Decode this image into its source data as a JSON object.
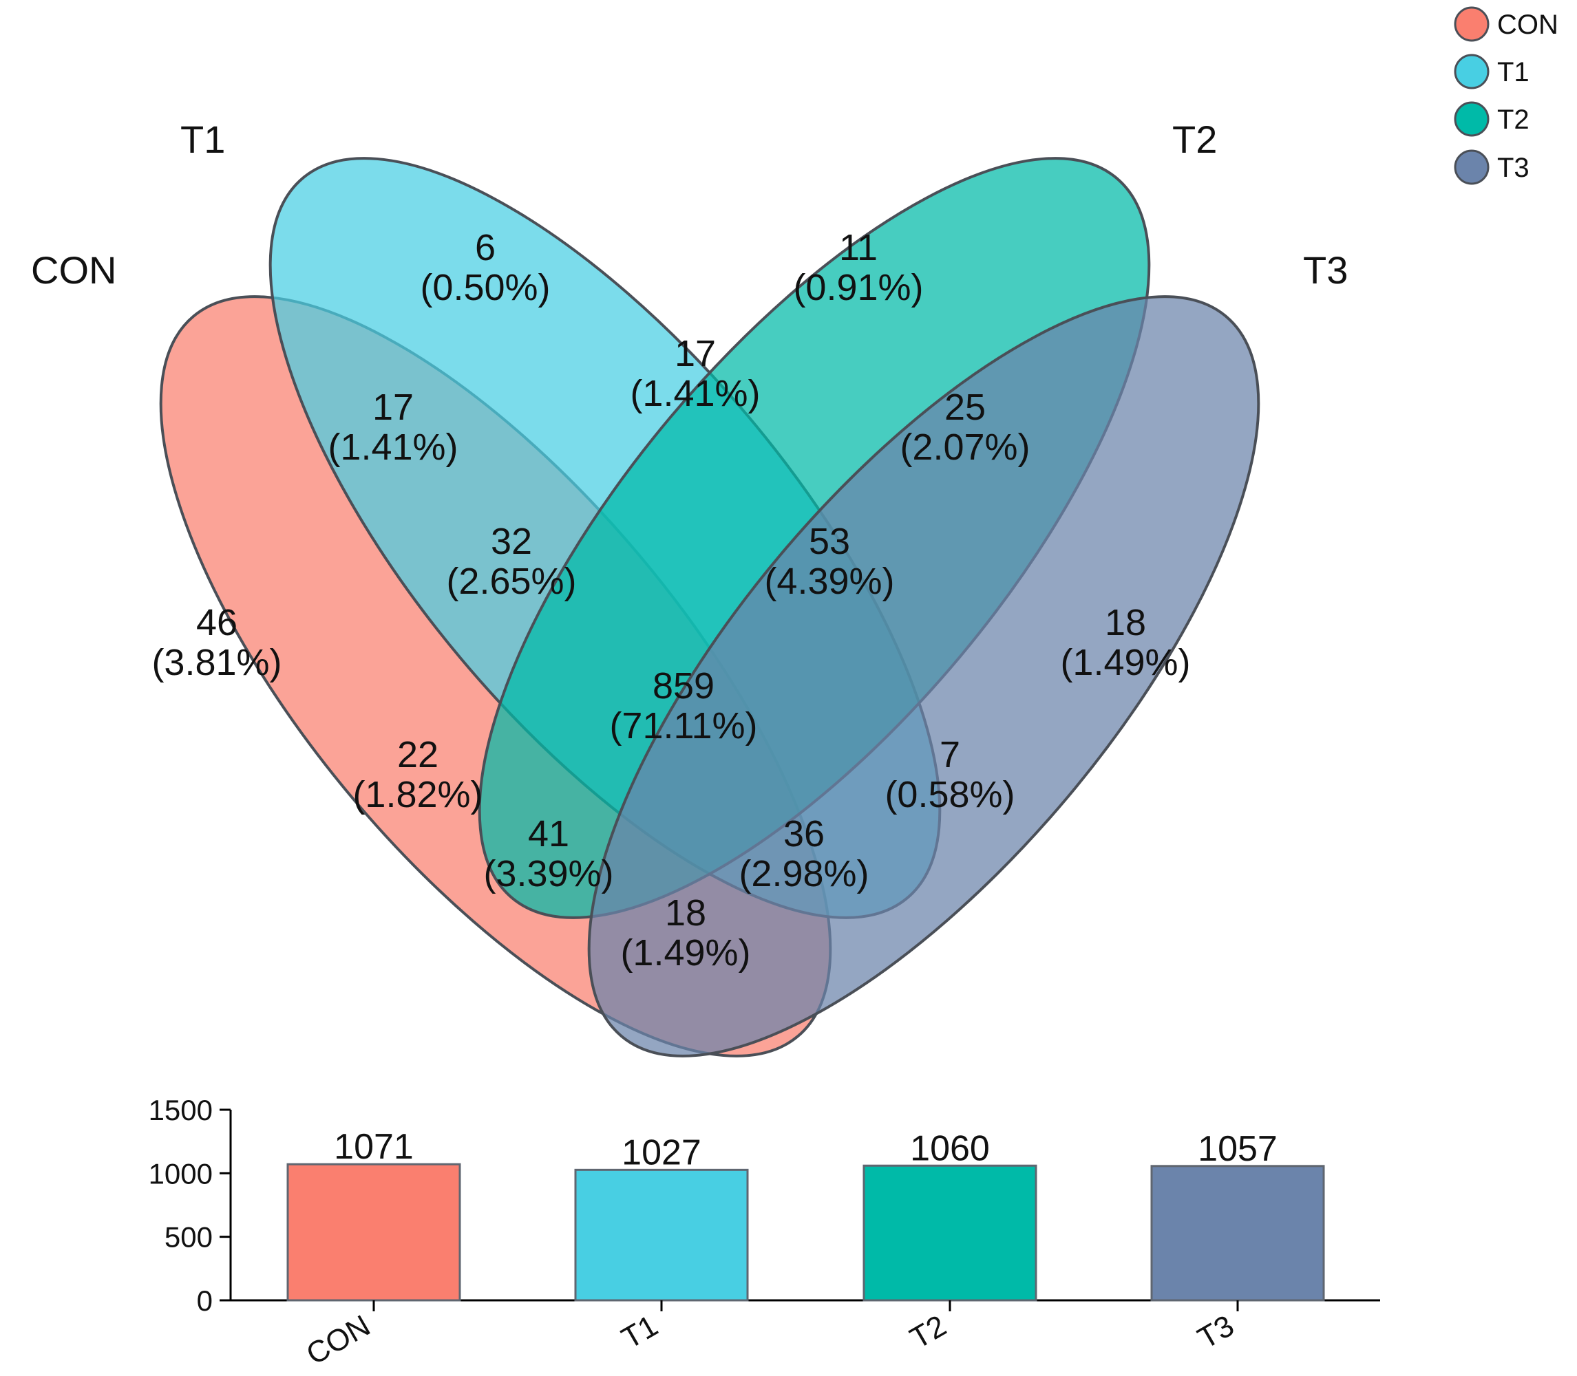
{
  "chart_data": [
    {
      "type": "venn",
      "sets": [
        {
          "name": "CON",
          "color": "#FA7F6F",
          "total": 1071
        },
        {
          "name": "T1",
          "color": "#48CFE3",
          "total": 1027
        },
        {
          "name": "T2",
          "color": "#00BAA8",
          "total": 1060
        },
        {
          "name": "T3",
          "color": "#6B84AB",
          "total": 1057
        }
      ],
      "regions": [
        {
          "sets": [
            "T1"
          ],
          "count": "6",
          "percent": "(0.50%)"
        },
        {
          "sets": [
            "T2"
          ],
          "count": "11",
          "percent": "(0.91%)"
        },
        {
          "sets": [
            "T1",
            "T2"
          ],
          "count": "17",
          "percent": "(1.41%)"
        },
        {
          "sets": [
            "CON",
            "T1"
          ],
          "count": "17",
          "percent": "(1.41%)"
        },
        {
          "sets": [
            "T2",
            "T3"
          ],
          "count": "25",
          "percent": "(2.07%)"
        },
        {
          "sets": [
            "CON",
            "T1",
            "T2"
          ],
          "count": "32",
          "percent": "(2.65%)"
        },
        {
          "sets": [
            "T1",
            "T2",
            "T3"
          ],
          "count": "53",
          "percent": "(4.39%)"
        },
        {
          "sets": [
            "CON"
          ],
          "count": "46",
          "percent": "(3.81%)"
        },
        {
          "sets": [
            "T3"
          ],
          "count": "18",
          "percent": "(1.49%)"
        },
        {
          "sets": [
            "CON",
            "T1",
            "T2",
            "T3"
          ],
          "count": "859",
          "percent": "(71.11%)"
        },
        {
          "sets": [
            "CON",
            "T2"
          ],
          "count": "22",
          "percent": "(1.82%)"
        },
        {
          "sets": [
            "T1",
            "T3"
          ],
          "count": "7",
          "percent": "(0.58%)"
        },
        {
          "sets": [
            "CON",
            "T2",
            "T3"
          ],
          "count": "41",
          "percent": "(3.39%)"
        },
        {
          "sets": [
            "CON",
            "T1",
            "T3"
          ],
          "count": "36",
          "percent": "(2.98%)"
        },
        {
          "sets": [
            "CON",
            "T3"
          ],
          "count": "18",
          "percent": "(1.49%)"
        }
      ],
      "legend": [
        "CON",
        "T1",
        "T2",
        "T3"
      ],
      "legend_placement": "top-right"
    },
    {
      "type": "bar",
      "categories": [
        "CON",
        "T1",
        "T2",
        "T3"
      ],
      "values": [
        1071,
        1027,
        1060,
        1057
      ],
      "value_labels": [
        "1071",
        "1027",
        "1060",
        "1057"
      ],
      "colors": [
        "#FA7F6F",
        "#48CFE3",
        "#00BAA8",
        "#6B84AB"
      ],
      "ylim": [
        0,
        1500
      ],
      "yticks": [
        0,
        500,
        1000,
        1500
      ],
      "ytick_labels": [
        "0",
        "500",
        "1000",
        "1500"
      ],
      "title": "",
      "xlabel": "",
      "ylabel": ""
    }
  ]
}
